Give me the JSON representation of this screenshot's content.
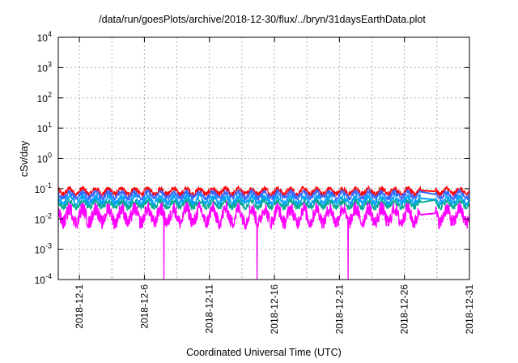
{
  "chart_data": {
    "type": "line",
    "title": "/data/run/goesPlots/archive/2018-12-30/flux/../bryn/31daysEarthData.plot",
    "xlabel": "Coordinated Universal Time (UTC)",
    "ylabel": "cSv/day",
    "scale": {
      "x": "time",
      "y": "log10"
    },
    "xlim": [
      "2018-11-29T09:00",
      "2018-12-31T00:00"
    ],
    "ylim": [
      0.0001,
      10000
    ],
    "y_ticks": [
      {
        "base": "10",
        "exp": "-4"
      },
      {
        "base": "10",
        "exp": "-3"
      },
      {
        "base": "10",
        "exp": "-2"
      },
      {
        "base": "10",
        "exp": "-1"
      },
      {
        "base": "10",
        "exp": "0"
      },
      {
        "base": "10",
        "exp": "1"
      },
      {
        "base": "10",
        "exp": "2"
      },
      {
        "base": "10",
        "exp": "3"
      },
      {
        "base": "10",
        "exp": "4"
      }
    ],
    "x_ticks": [
      "2018-12-1",
      "2018-12-6",
      "2018-12-11",
      "2018-12-16",
      "2018-12-21",
      "2018-12-26",
      "2018-12-31"
    ],
    "grid": true,
    "legend": "none",
    "data_gap": [
      "2018-12-27T06:00",
      "2018-12-28T09:00"
    ],
    "dropouts": [
      "2018-12-7T12:00",
      "2018-12-14T16:00",
      "2018-12-21T16:00"
    ],
    "series": [
      {
        "color": "#ff0000",
        "daily_min": 0.06,
        "daily_max": 0.11
      },
      {
        "color": "#3a66ff",
        "daily_min": 0.045,
        "daily_max": 0.085
      },
      {
        "color": "#00a0ff",
        "daily_min": 0.03,
        "daily_max": 0.06
      },
      {
        "color": "#00a896",
        "daily_min": 0.022,
        "daily_max": 0.042
      },
      {
        "color": "#ff00ff",
        "daily_min": 0.006,
        "daily_max": 0.028
      }
    ]
  }
}
